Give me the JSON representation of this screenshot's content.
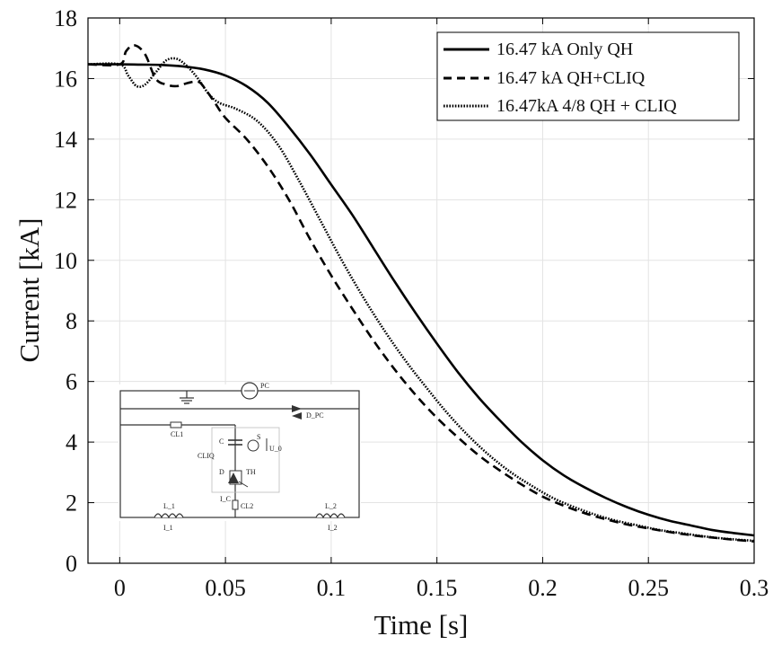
{
  "chart_data": {
    "type": "line",
    "xlabel": "Time [s]",
    "ylabel": "Current [kA]",
    "xlim": [
      -0.015,
      0.3
    ],
    "ylim": [
      0,
      18
    ],
    "xticks": [
      0,
      0.05,
      0.1,
      0.15,
      0.2,
      0.25,
      0.3
    ],
    "xtick_labels": [
      "0",
      "0.05",
      "0.1",
      "0.15",
      "0.2",
      "0.25",
      "0.3"
    ],
    "yticks": [
      0,
      2,
      4,
      6,
      8,
      10,
      12,
      14,
      16,
      18
    ],
    "ytick_labels": [
      "0",
      "2",
      "4",
      "6",
      "8",
      "10",
      "12",
      "14",
      "16",
      "18"
    ],
    "grid": true,
    "legend_position": "top-right",
    "series": [
      {
        "name": "16.47 kA Only QH",
        "style": "solid",
        "x": [
          -0.015,
          0,
          0.01,
          0.02,
          0.03,
          0.04,
          0.05,
          0.06,
          0.07,
          0.08,
          0.09,
          0.1,
          0.11,
          0.12,
          0.13,
          0.14,
          0.15,
          0.16,
          0.17,
          0.18,
          0.19,
          0.2,
          0.21,
          0.22,
          0.23,
          0.24,
          0.25,
          0.26,
          0.27,
          0.28,
          0.29,
          0.3
        ],
        "y": [
          16.47,
          16.47,
          16.46,
          16.45,
          16.4,
          16.3,
          16.1,
          15.75,
          15.2,
          14.4,
          13.5,
          12.5,
          11.5,
          10.4,
          9.3,
          8.25,
          7.25,
          6.3,
          5.45,
          4.7,
          4.0,
          3.4,
          2.9,
          2.5,
          2.15,
          1.85,
          1.6,
          1.4,
          1.25,
          1.1,
          1.0,
          0.92
        ]
      },
      {
        "name": "16.47 kA QH+CLIQ",
        "style": "dashed",
        "x": [
          -0.015,
          0,
          0.003,
          0.007,
          0.012,
          0.017,
          0.022,
          0.027,
          0.032,
          0.037,
          0.04,
          0.045,
          0.05,
          0.06,
          0.07,
          0.08,
          0.09,
          0.1,
          0.11,
          0.12,
          0.13,
          0.14,
          0.15,
          0.16,
          0.17,
          0.18,
          0.19,
          0.2,
          0.21,
          0.22,
          0.23,
          0.24,
          0.25,
          0.26,
          0.27,
          0.28,
          0.29,
          0.3
        ],
        "y": [
          16.47,
          16.47,
          16.9,
          17.1,
          16.8,
          16.0,
          15.8,
          15.75,
          15.85,
          15.9,
          15.7,
          15.2,
          14.7,
          14.0,
          13.1,
          12.0,
          10.7,
          9.5,
          8.4,
          7.35,
          6.4,
          5.55,
          4.8,
          4.15,
          3.55,
          3.05,
          2.6,
          2.2,
          1.9,
          1.65,
          1.45,
          1.28,
          1.15,
          1.03,
          0.93,
          0.85,
          0.78,
          0.72
        ]
      },
      {
        "name": "16.47kA 4/8 QH + CLIQ",
        "style": "dotted",
        "x": [
          -0.015,
          0,
          0.004,
          0.008,
          0.012,
          0.017,
          0.022,
          0.027,
          0.032,
          0.037,
          0.042,
          0.047,
          0.055,
          0.065,
          0.075,
          0.085,
          0.095,
          0.105,
          0.115,
          0.125,
          0.135,
          0.145,
          0.155,
          0.165,
          0.175,
          0.185,
          0.195,
          0.205,
          0.215,
          0.225,
          0.235,
          0.245,
          0.255,
          0.265,
          0.275,
          0.285,
          0.3
        ],
        "y": [
          16.47,
          16.47,
          16.1,
          15.75,
          15.8,
          16.2,
          16.6,
          16.65,
          16.4,
          16.0,
          15.5,
          15.2,
          15.0,
          14.6,
          13.8,
          12.6,
          11.3,
          10.0,
          8.8,
          7.7,
          6.7,
          5.8,
          4.95,
          4.2,
          3.55,
          3.0,
          2.55,
          2.15,
          1.85,
          1.6,
          1.4,
          1.25,
          1.1,
          1.0,
          0.9,
          0.82,
          0.74
        ]
      }
    ],
    "inset": {
      "labels": [
        "PC",
        "D_PC",
        "CL1",
        "C",
        "S",
        "U_0",
        "CLIQ",
        "D",
        "TH",
        "I_C",
        "CL2",
        "L_1",
        "L_2",
        "I_1",
        "I_2"
      ]
    }
  }
}
